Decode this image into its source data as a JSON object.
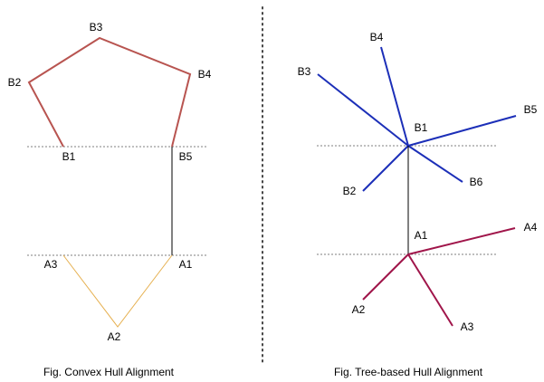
{
  "colors": {
    "convex_edge": "#b85450",
    "a_polyline": "#e6b050",
    "connector": "#000000",
    "tree_b": "#1c2fb8",
    "tree_a": "#a0154a",
    "guide": "#555555",
    "divider": "#444444",
    "text": "#000000"
  },
  "left": {
    "labels": {
      "B1": "B1",
      "B2": "B2",
      "B3": "B3",
      "B4": "B4",
      "B5": "B5",
      "A1": "A1",
      "A2": "A2",
      "A3": "A3"
    },
    "caption": "Fig. Convex Hull Alignment"
  },
  "right": {
    "labels": {
      "B1": "B1",
      "B2": "B2",
      "B3": "B3",
      "B4": "B4",
      "B5": "B5",
      "B6": "B6",
      "A1": "A1",
      "A2": "A2",
      "A3": "A3",
      "A4": "A4"
    },
    "caption": "Fig. Tree-based Hull Alignment"
  }
}
